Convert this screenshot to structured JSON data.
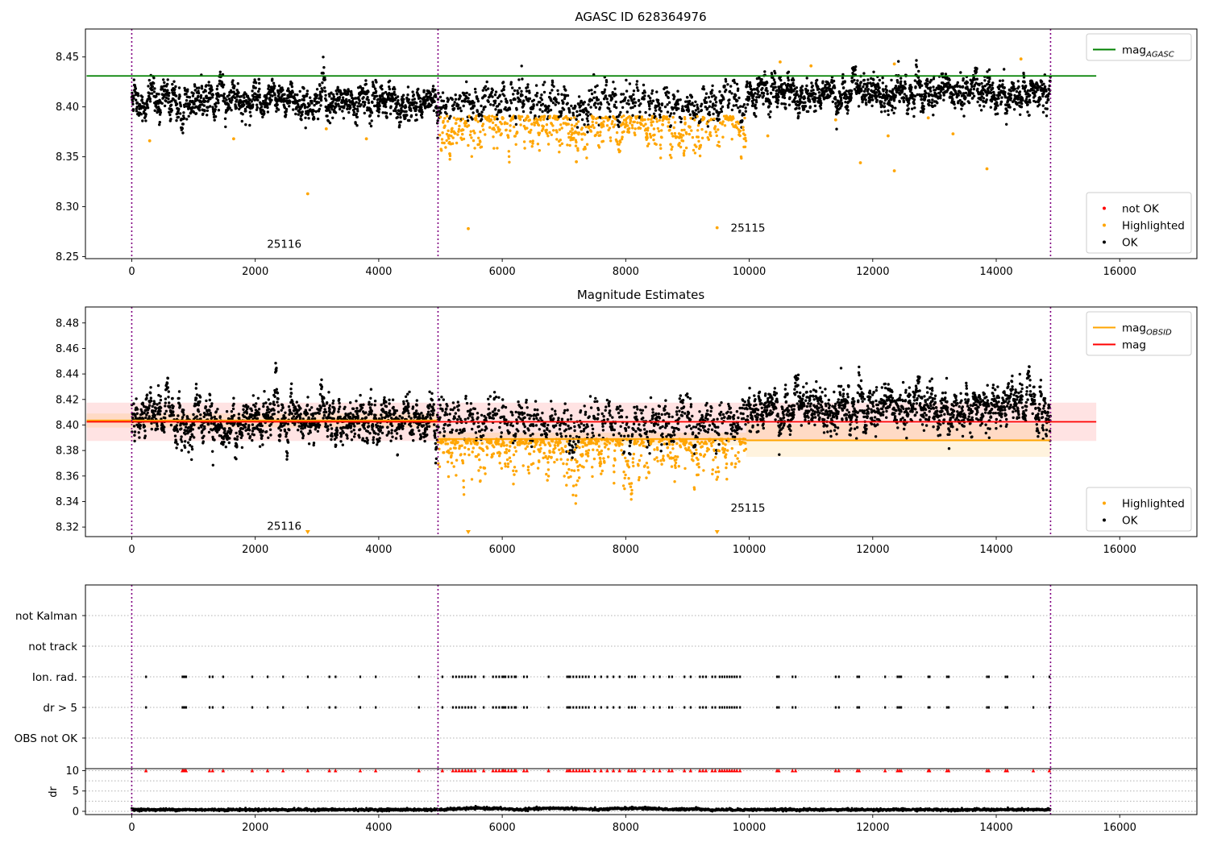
{
  "chart_data": [
    {
      "id": "agasc",
      "type": "scatter",
      "title": "AGASC ID 628364976",
      "xlim": [
        -750,
        17250
      ],
      "ylim": [
        8.248,
        8.478
      ],
      "x_ticks": [
        0,
        2000,
        4000,
        6000,
        8000,
        10000,
        12000,
        14000,
        16000
      ],
      "y_ticks": [
        8.25,
        8.3,
        8.35,
        8.4,
        8.45
      ],
      "y_tick_labels": [
        "8.25",
        "8.30",
        "8.35",
        "8.40",
        "8.45"
      ],
      "obsid_boundaries": [
        0,
        4960,
        14880
      ],
      "obsid_labels": [
        {
          "text": "25116",
          "x": 2470,
          "y": 8.259
        },
        {
          "text": "25115",
          "x": 9980,
          "y": 8.275
        }
      ],
      "lines": [
        {
          "name": "mag_AGASC",
          "legend_label": "mag",
          "legend_subscript": "AGASC",
          "color": "#008000",
          "x_range": [
            0,
            15620
          ],
          "y": 8.431
        }
      ],
      "segments": [
        {
          "x_range": [
            0,
            4960
          ],
          "ok_center": 8.405,
          "ok_sigma": 0.0085,
          "highlight_fraction": 0.0
        },
        {
          "x_range": [
            4960,
            9950
          ],
          "ok_center": 8.403,
          "ok_sigma": 0.0075,
          "highlight_center": 8.378,
          "highlight_sigma": 0.011,
          "highlight_fraction": 0.45
        },
        {
          "x_range": [
            9950,
            14880
          ],
          "ok_center": 8.414,
          "ok_sigma": 0.0085,
          "highlight_fraction": 0.0
        }
      ],
      "outliers": [
        {
          "x": 290,
          "y": 8.366
        },
        {
          "x": 1650,
          "y": 8.368
        },
        {
          "x": 2850,
          "y": 8.313
        },
        {
          "x": 3150,
          "y": 8.378
        },
        {
          "x": 3800,
          "y": 8.368
        },
        {
          "x": 5150,
          "y": 8.353
        },
        {
          "x": 5450,
          "y": 8.278
        },
        {
          "x": 7200,
          "y": 8.345
        },
        {
          "x": 9480,
          "y": 8.279
        },
        {
          "x": 10300,
          "y": 8.371
        },
        {
          "x": 11800,
          "y": 8.344
        },
        {
          "x": 12250,
          "y": 8.371
        },
        {
          "x": 12350,
          "y": 8.336
        },
        {
          "x": 13300,
          "y": 8.373
        },
        {
          "x": 13850,
          "y": 8.338
        },
        {
          "x": 10500,
          "y": 8.445
        },
        {
          "x": 11000,
          "y": 8.441
        },
        {
          "x": 12350,
          "y": 8.443
        },
        {
          "x": 14400,
          "y": 8.448
        },
        {
          "x": 11400,
          "y": 8.387
        },
        {
          "x": 12900,
          "y": 8.389
        }
      ],
      "legends": [
        {
          "position": "top-right",
          "entries": [
            {
              "kind": "line",
              "color": "#008000",
              "label": "mag",
              "subscript": "AGASC"
            }
          ]
        },
        {
          "position": "bottom-right",
          "entries": [
            {
              "kind": "marker",
              "color": "#ff0000",
              "label": "not OK"
            },
            {
              "kind": "marker",
              "color": "#ffa500",
              "label": "Highlighted"
            },
            {
              "kind": "marker",
              "color": "#000000",
              "label": "OK"
            }
          ]
        }
      ]
    },
    {
      "id": "estimates",
      "type": "scatter",
      "title": "Magnitude Estimates",
      "xlim": [
        -750,
        17250
      ],
      "ylim": [
        8.3125,
        8.4925
      ],
      "x_ticks": [
        0,
        2000,
        4000,
        6000,
        8000,
        10000,
        12000,
        14000,
        16000
      ],
      "y_ticks": [
        8.32,
        8.34,
        8.36,
        8.38,
        8.4,
        8.42,
        8.44,
        8.46,
        8.48
      ],
      "y_tick_labels": [
        "8.32",
        "8.34",
        "8.36",
        "8.38",
        "8.40",
        "8.42",
        "8.44",
        "8.46",
        "8.48"
      ],
      "obsid_boundaries": [
        0,
        4960,
        14880
      ],
      "obsid_labels": [
        {
          "text": "25116",
          "x": 2470,
          "y": 8.318
        },
        {
          "text": "25115",
          "x": 9980,
          "y": 8.332
        }
      ],
      "lines": [
        {
          "name": "mag",
          "legend_label": "mag",
          "color": "#ff0000",
          "x_range": [
            0,
            15620
          ],
          "y": 8.4025,
          "band": [
            8.3875,
            8.4175
          ]
        },
        {
          "name": "mag_OBSID",
          "legend_label": "mag",
          "legend_subscript": "OBSID",
          "color": "#ffa500",
          "segments": [
            {
              "x_range": [
                0,
                4960
              ],
              "y": 8.4035,
              "band": [
                8.398,
                8.409
              ]
            },
            {
              "x_range": [
                4960,
                9950
              ],
              "y": 8.389,
              "band": [
                8.384,
                8.394
              ]
            },
            {
              "x_range": [
                9950,
                14880
              ],
              "y": 8.388,
              "band": [
                8.375,
                8.401
              ]
            }
          ]
        }
      ],
      "segments": [
        {
          "x_range": [
            0,
            4960
          ],
          "ok_center": 8.404,
          "ok_sigma": 0.0085,
          "highlight_fraction": 0.0
        },
        {
          "x_range": [
            4960,
            9950
          ],
          "ok_center": 8.401,
          "ok_sigma": 0.0075,
          "highlight_center": 8.379,
          "highlight_sigma": 0.011,
          "highlight_fraction": 0.45
        },
        {
          "x_range": [
            9950,
            14880
          ],
          "ok_center": 8.413,
          "ok_sigma": 0.0085,
          "highlight_fraction": 0.0
        }
      ],
      "clipped_markers": [
        {
          "x": 2850
        },
        {
          "x": 5450
        },
        {
          "x": 9480
        }
      ],
      "legends": [
        {
          "position": "top-right",
          "entries": [
            {
              "kind": "line",
              "color": "#ffa500",
              "label": "mag",
              "subscript": "OBSID"
            },
            {
              "kind": "line",
              "color": "#ff0000",
              "label": "mag"
            }
          ]
        },
        {
          "position": "bottom-right",
          "entries": [
            {
              "kind": "marker",
              "color": "#ffa500",
              "label": "Highlighted"
            },
            {
              "kind": "marker",
              "color": "#000000",
              "label": "OK"
            }
          ]
        }
      ]
    },
    {
      "id": "flags",
      "type": "scatter",
      "xlim": [
        -750,
        17250
      ],
      "categories": [
        "OBS not OK",
        "dr > 5",
        "Ion. rad.",
        "not track",
        "not Kalman"
      ],
      "flag_events": {
        "dr > 5": [
          230,
          820,
          840,
          860,
          880,
          1260,
          1310,
          1480,
          1950,
          2200,
          2450,
          2850,
          3200,
          3300,
          3700,
          3950,
          4650,
          5030,
          5200,
          5250,
          5300,
          5350,
          5400,
          5450,
          5500,
          5560,
          5700,
          5850,
          5900,
          5950,
          6000,
          6020,
          6050,
          6100,
          6150,
          6200,
          6220,
          6350,
          6400,
          6750,
          7050,
          7080,
          7100,
          7150,
          7200,
          7250,
          7300,
          7350,
          7400,
          7500,
          7600,
          7700,
          7800,
          7900,
          8050,
          8100,
          8150,
          8300,
          8450,
          8550,
          8700,
          8750,
          8950,
          9050,
          9200,
          9250,
          9300,
          9400,
          9450,
          9520,
          9560,
          9600,
          9640,
          9680,
          9720,
          9760,
          9800,
          9850,
          10450,
          10480,
          10700,
          10750,
          11400,
          11450,
          11750,
          11780,
          12200,
          12400,
          12430,
          12460,
          12900,
          12920,
          13200,
          13230,
          13850,
          13880,
          14150,
          14180,
          14600,
          14860
        ],
        "Ion. rad.": [
          230,
          820,
          840,
          860,
          880,
          1260,
          1310,
          1480,
          1950,
          2200,
          2450,
          2850,
          3200,
          3300,
          3700,
          3950,
          4650,
          5030,
          5200,
          5250,
          5300,
          5350,
          5400,
          5450,
          5500,
          5560,
          5700,
          5850,
          5900,
          5950,
          6000,
          6020,
          6050,
          6100,
          6150,
          6200,
          6220,
          6350,
          6400,
          6750,
          7050,
          7080,
          7100,
          7150,
          7200,
          7250,
          7300,
          7350,
          7400,
          7500,
          7600,
          7700,
          7800,
          7900,
          8050,
          8100,
          8150,
          8300,
          8450,
          8550,
          8700,
          8750,
          8950,
          9050,
          9200,
          9250,
          9300,
          9400,
          9450,
          9520,
          9560,
          9600,
          9640,
          9680,
          9720,
          9760,
          9800,
          9850,
          10450,
          10480,
          10700,
          10750,
          11400,
          11450,
          11750,
          11780,
          12200,
          12400,
          12430,
          12460,
          12900,
          12920,
          13200,
          13230,
          13850,
          13880,
          14150,
          14180,
          14600,
          14860
        ],
        "OBS not OK": [],
        "not track": [],
        "not Kalman": []
      },
      "obsid_boundaries": [
        0,
        4960,
        14880
      ]
    },
    {
      "id": "dr",
      "type": "scatter",
      "ylabel": "dr",
      "xlim": [
        -750,
        17250
      ],
      "ylim": [
        -0.8,
        10.5
      ],
      "x_ticks": [
        0,
        2000,
        4000,
        6000,
        8000,
        10000,
        12000,
        14000,
        16000
      ],
      "y_ticks": [
        0,
        5,
        10
      ],
      "y_tick_labels": [
        "0",
        "5",
        "10"
      ],
      "baseline_mean": 0.4,
      "baseline_sigma": 0.15,
      "x_range": [
        0,
        14880
      ],
      "clipped_marker_y": 10,
      "clipped_marker_color": "#ff0000",
      "obsid_boundaries": [
        0,
        4960,
        14880
      ]
    }
  ],
  "x_tick_labels": [
    "0",
    "2000",
    "4000",
    "6000",
    "8000",
    "10000",
    "12000",
    "14000",
    "16000"
  ]
}
